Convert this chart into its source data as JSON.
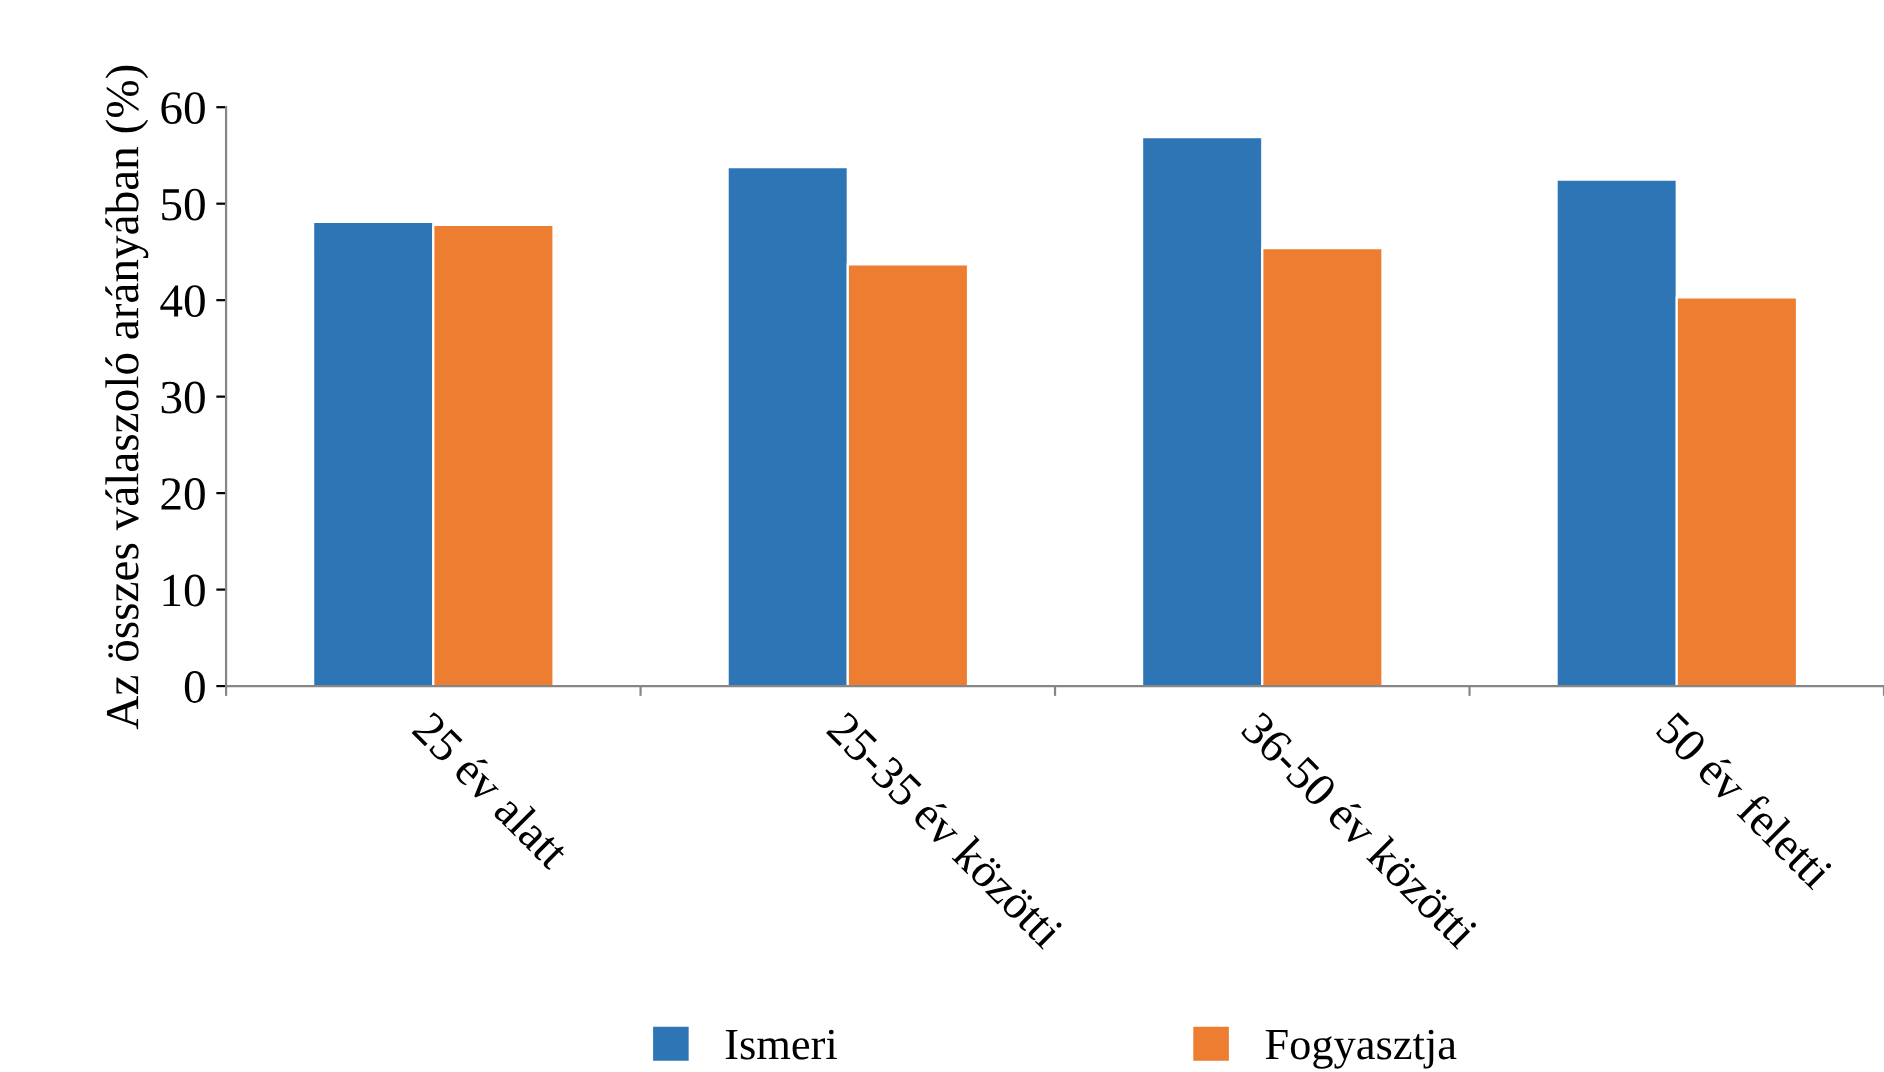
{
  "chart_data": {
    "type": "bar",
    "ylabel": "Az összes válaszoló arányában (%)",
    "categories": [
      "25 év alatt",
      "25-35 év közötti",
      "36-50 év közötti",
      "50 év feletti"
    ],
    "series": [
      {
        "name": "Ismeri",
        "color": "#2e75b6",
        "values": [
          48.1,
          53.8,
          56.9,
          52.5
        ]
      },
      {
        "name": "Fogyasztja",
        "color": "#ed7d31",
        "values": [
          47.8,
          43.7,
          45.4,
          40.3
        ]
      }
    ],
    "ylim": [
      0,
      60
    ],
    "yticks": [
      0,
      10,
      20,
      30,
      40,
      50,
      60
    ],
    "grid": false,
    "legend": "bottom"
  }
}
